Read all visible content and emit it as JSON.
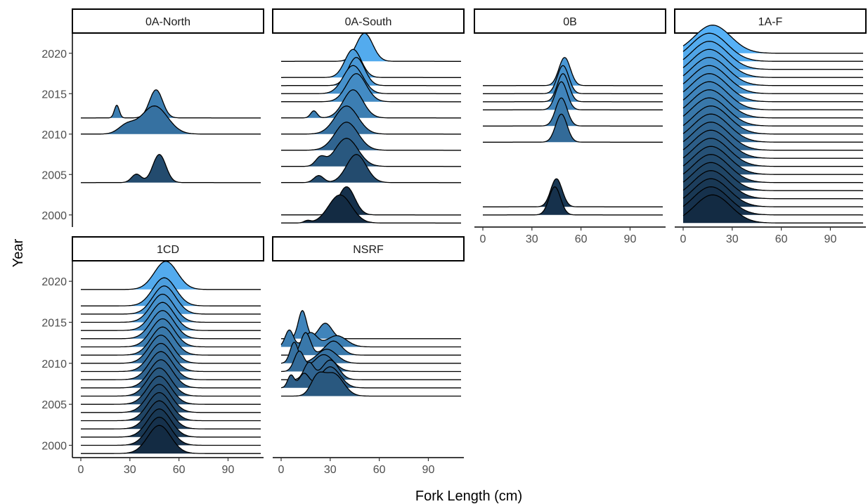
{
  "chart_data": {
    "type": "ridgeline",
    "xlabel": "Fork Length (cm)",
    "ylabel": "Year",
    "x_ticks": [
      0,
      30,
      60,
      90
    ],
    "y_ticks": [
      2000,
      2005,
      2010,
      2015,
      2020
    ],
    "xlim": [
      0,
      110
    ],
    "ylim": [
      1998.5,
      2022.5
    ],
    "fill_scale": {
      "low_year": 1999,
      "high_year": 2020,
      "low_color": "#132B43",
      "high_color": "#56B1F7"
    },
    "panels": [
      {
        "name": "0A-North",
        "ridges": [
          {
            "year": 2004,
            "peaks": [
              {
                "mu": 34,
                "sd": 3,
                "h": 0.3
              },
              {
                "mu": 48,
                "sd": 4,
                "h": 1.0
              }
            ]
          },
          {
            "year": 2010,
            "peaks": [
              {
                "mu": 28,
                "sd": 5,
                "h": 0.3
              },
              {
                "mu": 45,
                "sd": 8,
                "h": 1.0
              }
            ]
          },
          {
            "year": 2012,
            "peaks": [
              {
                "mu": 22,
                "sd": 1.5,
                "h": 0.45
              },
              {
                "mu": 46,
                "sd": 4,
                "h": 1.0
              }
            ]
          }
        ]
      },
      {
        "name": "0A-South",
        "ridges": [
          {
            "year": 1999,
            "peaks": [
              {
                "mu": 16,
                "sd": 2,
                "h": 0.08
              },
              {
                "mu": 36,
                "sd": 7,
                "h": 1.0
              }
            ]
          },
          {
            "year": 2000,
            "peaks": [
              {
                "mu": 40,
                "sd": 5,
                "h": 1.0
              }
            ]
          },
          {
            "year": 2004,
            "peaks": [
              {
                "mu": 23,
                "sd": 3,
                "h": 0.25
              },
              {
                "mu": 46,
                "sd": 6,
                "h": 1.0
              }
            ]
          },
          {
            "year": 2006,
            "peaks": [
              {
                "mu": 24,
                "sd": 3,
                "h": 0.3
              },
              {
                "mu": 40,
                "sd": 7,
                "h": 1.0
              }
            ]
          },
          {
            "year": 2008,
            "peaks": [
              {
                "mu": 40,
                "sd": 7,
                "h": 1.0
              }
            ]
          },
          {
            "year": 2010,
            "peaks": [
              {
                "mu": 40,
                "sd": 7,
                "h": 1.0
              }
            ]
          },
          {
            "year": 2012,
            "peaks": [
              {
                "mu": 20,
                "sd": 2,
                "h": 0.25
              },
              {
                "mu": 44,
                "sd": 6,
                "h": 1.0
              }
            ]
          },
          {
            "year": 2014,
            "peaks": [
              {
                "mu": 46,
                "sd": 6,
                "h": 1.0
              }
            ]
          },
          {
            "year": 2015,
            "peaks": [
              {
                "mu": 44,
                "sd": 6,
                "h": 1.0
              }
            ]
          },
          {
            "year": 2016,
            "peaks": [
              {
                "mu": 46,
                "sd": 5,
                "h": 1.0
              }
            ]
          },
          {
            "year": 2017,
            "peaks": [
              {
                "mu": 44,
                "sd": 5,
                "h": 1.0
              }
            ]
          },
          {
            "year": 2019,
            "peaks": [
              {
                "mu": 51,
                "sd": 5,
                "h": 1.0
              }
            ]
          }
        ]
      },
      {
        "name": "0B",
        "ridges": [
          {
            "year": 2000,
            "peaks": [
              {
                "mu": 44,
                "sd": 3.5,
                "h": 1.0
              }
            ]
          },
          {
            "year": 2001,
            "peaks": [
              {
                "mu": 45,
                "sd": 3.5,
                "h": 1.0
              }
            ]
          },
          {
            "year": 2009,
            "peaks": [
              {
                "mu": 48,
                "sd": 3.5,
                "h": 1.0
              }
            ]
          },
          {
            "year": 2011,
            "peaks": [
              {
                "mu": 48,
                "sd": 3.5,
                "h": 1.0
              }
            ]
          },
          {
            "year": 2013,
            "peaks": [
              {
                "mu": 48,
                "sd": 3.5,
                "h": 1.0
              }
            ]
          },
          {
            "year": 2014,
            "peaks": [
              {
                "mu": 49,
                "sd": 3.5,
                "h": 1.0
              }
            ]
          },
          {
            "year": 2015,
            "peaks": [
              {
                "mu": 49,
                "sd": 3.5,
                "h": 1.0
              }
            ]
          },
          {
            "year": 2016,
            "peaks": [
              {
                "mu": 50,
                "sd": 3.5,
                "h": 1.0
              }
            ]
          }
        ]
      },
      {
        "name": "1A-F",
        "ridges": [
          {
            "year": 1999,
            "peaks": [
              {
                "mu": 18,
                "sd": 11,
                "h": 1.0
              }
            ]
          },
          {
            "year": 2000,
            "peaks": [
              {
                "mu": 17,
                "sd": 11,
                "h": 1.0
              }
            ]
          },
          {
            "year": 2001,
            "peaks": [
              {
                "mu": 17,
                "sd": 11,
                "h": 1.0
              }
            ]
          },
          {
            "year": 2002,
            "peaks": [
              {
                "mu": 17,
                "sd": 11,
                "h": 1.0
              }
            ]
          },
          {
            "year": 2003,
            "peaks": [
              {
                "mu": 17,
                "sd": 11,
                "h": 1.0
              }
            ]
          },
          {
            "year": 2004,
            "peaks": [
              {
                "mu": 17,
                "sd": 11,
                "h": 1.0
              }
            ]
          },
          {
            "year": 2005,
            "peaks": [
              {
                "mu": 17,
                "sd": 11,
                "h": 1.0
              }
            ]
          },
          {
            "year": 2006,
            "peaks": [
              {
                "mu": 17,
                "sd": 11,
                "h": 1.0
              }
            ]
          },
          {
            "year": 2007,
            "peaks": [
              {
                "mu": 17,
                "sd": 11,
                "h": 1.0
              }
            ]
          },
          {
            "year": 2008,
            "peaks": [
              {
                "mu": 17,
                "sd": 11,
                "h": 1.0
              }
            ]
          },
          {
            "year": 2009,
            "peaks": [
              {
                "mu": 17,
                "sd": 11,
                "h": 1.0
              }
            ]
          },
          {
            "year": 2010,
            "peaks": [
              {
                "mu": 17,
                "sd": 11,
                "h": 1.0
              }
            ]
          },
          {
            "year": 2011,
            "peaks": [
              {
                "mu": 16,
                "sd": 11,
                "h": 1.0
              }
            ]
          },
          {
            "year": 2012,
            "peaks": [
              {
                "mu": 16,
                "sd": 11,
                "h": 1.0
              }
            ]
          },
          {
            "year": 2013,
            "peaks": [
              {
                "mu": 16,
                "sd": 11,
                "h": 1.0
              }
            ]
          },
          {
            "year": 2014,
            "peaks": [
              {
                "mu": 16,
                "sd": 11,
                "h": 1.0
              }
            ]
          },
          {
            "year": 2015,
            "peaks": [
              {
                "mu": 16,
                "sd": 11,
                "h": 1.0
              }
            ]
          },
          {
            "year": 2016,
            "peaks": [
              {
                "mu": 16,
                "sd": 11,
                "h": 1.0
              }
            ]
          },
          {
            "year": 2017,
            "peaks": [
              {
                "mu": 16,
                "sd": 11,
                "h": 1.0
              }
            ]
          },
          {
            "year": 2018,
            "peaks": [
              {
                "mu": 16,
                "sd": 11,
                "h": 1.0
              }
            ]
          },
          {
            "year": 2019,
            "peaks": [
              {
                "mu": 16,
                "sd": 11,
                "h": 1.0
              }
            ]
          },
          {
            "year": 2020,
            "peaks": [
              {
                "mu": 18,
                "sd": 11,
                "h": 1.0
              }
            ]
          }
        ]
      },
      {
        "name": "1CD",
        "ridges": [
          {
            "year": 1999,
            "peaks": [
              {
                "mu": 48,
                "sd": 7,
                "h": 1.0
              }
            ]
          },
          {
            "year": 2000,
            "peaks": [
              {
                "mu": 48,
                "sd": 7,
                "h": 1.0
              }
            ]
          },
          {
            "year": 2001,
            "peaks": [
              {
                "mu": 48,
                "sd": 7,
                "h": 1.0
              }
            ]
          },
          {
            "year": 2002,
            "peaks": [
              {
                "mu": 48,
                "sd": 7,
                "h": 1.0
              }
            ]
          },
          {
            "year": 2003,
            "peaks": [
              {
                "mu": 48,
                "sd": 7,
                "h": 1.0
              }
            ]
          },
          {
            "year": 2004,
            "peaks": [
              {
                "mu": 48,
                "sd": 7,
                "h": 1.0
              }
            ]
          },
          {
            "year": 2005,
            "peaks": [
              {
                "mu": 48,
                "sd": 7,
                "h": 1.0
              }
            ]
          },
          {
            "year": 2006,
            "peaks": [
              {
                "mu": 48,
                "sd": 7,
                "h": 1.0
              }
            ]
          },
          {
            "year": 2007,
            "peaks": [
              {
                "mu": 49,
                "sd": 7,
                "h": 1.0
              }
            ]
          },
          {
            "year": 2008,
            "peaks": [
              {
                "mu": 49,
                "sd": 7,
                "h": 1.0
              }
            ]
          },
          {
            "year": 2009,
            "peaks": [
              {
                "mu": 49,
                "sd": 7,
                "h": 1.0
              }
            ]
          },
          {
            "year": 2010,
            "peaks": [
              {
                "mu": 49,
                "sd": 7,
                "h": 1.0
              }
            ]
          },
          {
            "year": 2011,
            "peaks": [
              {
                "mu": 50,
                "sd": 7,
                "h": 1.0
              }
            ]
          },
          {
            "year": 2012,
            "peaks": [
              {
                "mu": 50,
                "sd": 7,
                "h": 1.0
              }
            ]
          },
          {
            "year": 2013,
            "peaks": [
              {
                "mu": 50,
                "sd": 7,
                "h": 1.0
              }
            ]
          },
          {
            "year": 2014,
            "peaks": [
              {
                "mu": 50,
                "sd": 7,
                "h": 1.0
              }
            ]
          },
          {
            "year": 2015,
            "peaks": [
              {
                "mu": 50,
                "sd": 7,
                "h": 1.0
              }
            ]
          },
          {
            "year": 2016,
            "peaks": [
              {
                "mu": 51,
                "sd": 7,
                "h": 1.0
              }
            ]
          },
          {
            "year": 2017,
            "peaks": [
              {
                "mu": 51,
                "sd": 7,
                "h": 1.0
              }
            ]
          },
          {
            "year": 2019,
            "peaks": [
              {
                "mu": 52,
                "sd": 7,
                "h": 1.0
              }
            ]
          }
        ]
      },
      {
        "name": "NSRF",
        "ridges": [
          {
            "year": 2006,
            "peaks": [
              {
                "mu": 22,
                "sd": 4,
                "h": 0.6
              },
              {
                "mu": 32,
                "sd": 6,
                "h": 0.8
              }
            ]
          },
          {
            "year": 2007,
            "peaks": [
              {
                "mu": 6,
                "sd": 2,
                "h": 0.45
              },
              {
                "mu": 14,
                "sd": 3,
                "h": 0.5
              },
              {
                "mu": 30,
                "sd": 6,
                "h": 0.75
              }
            ]
          },
          {
            "year": 2008,
            "peaks": [
              {
                "mu": 17,
                "sd": 3,
                "h": 0.6
              },
              {
                "mu": 30,
                "sd": 5,
                "h": 0.7
              }
            ]
          },
          {
            "year": 2009,
            "peaks": [
              {
                "mu": 11,
                "sd": 3,
                "h": 0.7
              },
              {
                "mu": 26,
                "sd": 6,
                "h": 0.6
              }
            ]
          },
          {
            "year": 2010,
            "peaks": [
              {
                "mu": 8,
                "sd": 2.5,
                "h": 0.75
              },
              {
                "mu": 28,
                "sd": 6,
                "h": 0.5
              }
            ]
          },
          {
            "year": 2011,
            "peaks": [
              {
                "mu": 15,
                "sd": 3,
                "h": 0.8
              },
              {
                "mu": 32,
                "sd": 5,
                "h": 0.5
              }
            ]
          },
          {
            "year": 2012,
            "peaks": [
              {
                "mu": 5,
                "sd": 2.5,
                "h": 0.6
              },
              {
                "mu": 18,
                "sd": 4,
                "h": 0.5
              },
              {
                "mu": 34,
                "sd": 6,
                "h": 0.4
              }
            ]
          },
          {
            "year": 2013,
            "peaks": [
              {
                "mu": 13,
                "sd": 2.5,
                "h": 1.0
              },
              {
                "mu": 27,
                "sd": 4,
                "h": 0.55
              }
            ]
          }
        ]
      }
    ]
  }
}
